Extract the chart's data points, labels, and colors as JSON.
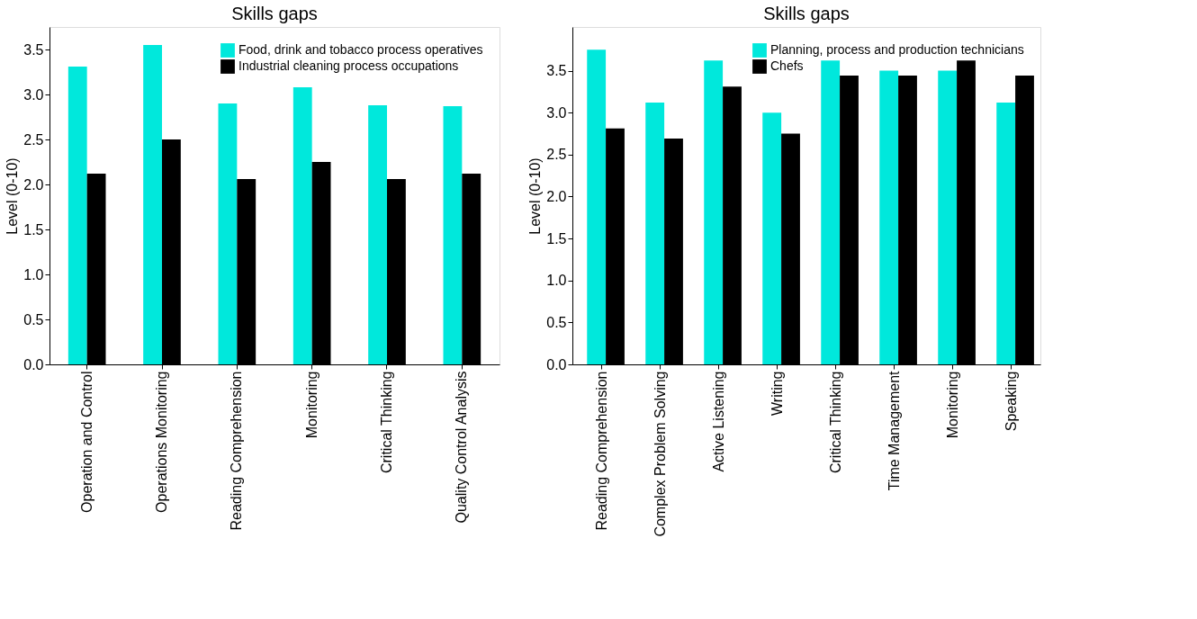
{
  "chart_data": [
    {
      "type": "bar",
      "title": "Skills gaps",
      "ylabel": "Level (0-10)",
      "categories": [
        "Operation and Control",
        "Operations Monitoring",
        "Reading Comprehension",
        "Monitoring",
        "Critical Thinking",
        "Quality Control Analysis"
      ],
      "series": [
        {
          "name": "Food, drink and tobacco process operatives",
          "color": "#00e8dc",
          "values": [
            3.31,
            3.55,
            2.9,
            3.08,
            2.88,
            2.87
          ]
        },
        {
          "name": "Industrial cleaning process occupations",
          "color": "#000000",
          "values": [
            2.12,
            2.5,
            2.06,
            2.25,
            2.06,
            2.12
          ]
        }
      ],
      "ylim": [
        0,
        3.75
      ],
      "yticks": [
        {
          "value": 0,
          "label": "0.0"
        },
        0.5,
        {
          "value": 1,
          "label": "1.0"
        },
        1.5,
        {
          "value": 2,
          "label": "2.0"
        },
        2.5,
        {
          "value": 3,
          "label": "3.0"
        },
        3.5
      ],
      "grid": false,
      "legend": "top right"
    },
    {
      "type": "bar",
      "title": "Skills gaps",
      "ylabel": "Level (0-10)",
      "categories": [
        "Reading Comprehension",
        "Complex Problem Solving",
        "Active Listening",
        "Writing",
        "Critical Thinking",
        "Time Management",
        "Monitoring",
        "Speaking"
      ],
      "series": [
        {
          "name": "Planning, process and production technicians",
          "color": "#00e8dc",
          "values": [
            3.75,
            3.12,
            3.62,
            3.0,
            3.62,
            3.5,
            3.5,
            3.12
          ]
        },
        {
          "name": "Chefs",
          "color": "#000000",
          "values": [
            2.81,
            2.69,
            3.31,
            2.75,
            3.44,
            3.44,
            3.62,
            3.44
          ]
        }
      ],
      "ylim": [
        0,
        4.02
      ],
      "yticks": [
        {
          "value": 0,
          "label": "0.0"
        },
        0.5,
        {
          "value": 1,
          "label": "1.0"
        },
        1.5,
        {
          "value": 2,
          "label": "2.0"
        },
        2.5,
        {
          "value": 3,
          "label": "3.0"
        },
        3.5
      ],
      "grid": false,
      "legend": "top right"
    }
  ]
}
